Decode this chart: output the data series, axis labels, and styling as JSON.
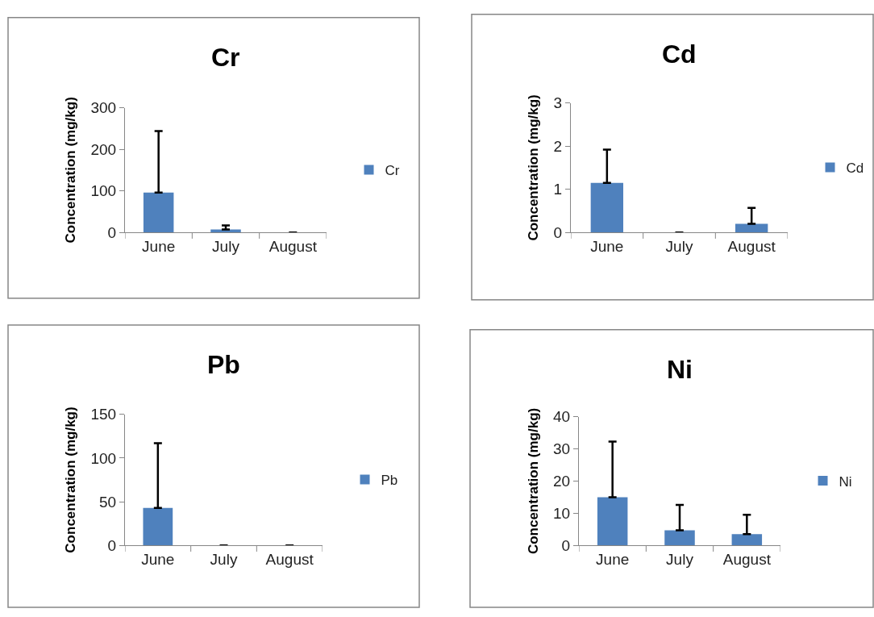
{
  "chart_data": [
    {
      "type": "bar",
      "title": "Cr",
      "ylabel": "Concentration (mg/kg)",
      "categories": [
        "June",
        "July",
        "August"
      ],
      "series": [
        {
          "name": "Cr",
          "color": "#4f81bd",
          "values": [
            96,
            7,
            0
          ],
          "errors": [
            [
              96,
              244
            ],
            [
              7,
              17
            ],
            null
          ]
        }
      ],
      "ylim": [
        0,
        300
      ],
      "yticks": [
        0,
        100,
        200,
        300
      ],
      "legend": "right"
    },
    {
      "type": "bar",
      "title": "Cd",
      "ylabel": "Concentration (mg/kg)",
      "categories": [
        "June",
        "July",
        "August"
      ],
      "series": [
        {
          "name": "Cd",
          "color": "#4f81bd",
          "values": [
            1.15,
            0,
            0.2
          ],
          "errors": [
            [
              1.15,
              1.92
            ],
            null,
            [
              0.2,
              0.57
            ]
          ]
        }
      ],
      "ylim": [
        0,
        3
      ],
      "yticks": [
        0,
        1,
        2,
        3
      ],
      "legend": "right"
    },
    {
      "type": "bar",
      "title": "Pb",
      "ylabel": "Concentration (mg/kg)",
      "categories": [
        "June",
        "July",
        "August"
      ],
      "series": [
        {
          "name": "Pb",
          "color": "#4f81bd",
          "values": [
            43,
            0,
            0
          ],
          "errors": [
            [
              43,
              117
            ],
            null,
            null
          ]
        }
      ],
      "ylim": [
        0,
        150
      ],
      "yticks": [
        0,
        50,
        100,
        150
      ],
      "legend": "right"
    },
    {
      "type": "bar",
      "title": "Ni",
      "ylabel": "Concentration (mg/kg)",
      "categories": [
        "June",
        "July",
        "August"
      ],
      "series": [
        {
          "name": "Ni",
          "color": "#4f81bd",
          "values": [
            15,
            4.7,
            3.5
          ],
          "errors": [
            [
              15,
              32.3
            ],
            [
              4.7,
              12.6
            ],
            [
              3.5,
              9.5
            ]
          ]
        }
      ],
      "ylim": [
        0,
        40
      ],
      "yticks": [
        0,
        10,
        20,
        30,
        40
      ],
      "legend": "right"
    }
  ]
}
